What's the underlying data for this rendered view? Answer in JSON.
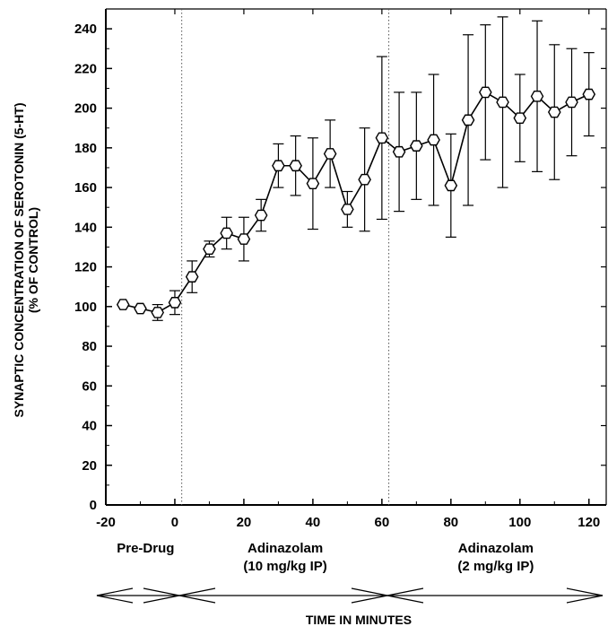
{
  "chart_data": {
    "type": "line",
    "xlabel": "TIME IN MINUTES",
    "ylabel": "SYNAPTIC CONCENTRATION OF SEROTONIN (5-HT)",
    "ylabel2": "(% OF CONTROL)",
    "xlim": [
      -20,
      125
    ],
    "ylim": [
      0,
      250
    ],
    "xticks": [
      "-20",
      "0",
      "20",
      "40",
      "60",
      "80",
      "100",
      "120"
    ],
    "yticks": [
      "0",
      "20",
      "40",
      "60",
      "80",
      "100",
      "120",
      "140",
      "160",
      "180",
      "200",
      "220",
      "240"
    ],
    "grid": false,
    "vlines": [
      2,
      62
    ],
    "phases": [
      {
        "label": "Pre-Drug",
        "sublabel": "",
        "from": -20,
        "to": 2
      },
      {
        "label": "Adinazolam",
        "sublabel": "(10 mg/kg IP)",
        "from": 2,
        "to": 62
      },
      {
        "label": "Adinazolam",
        "sublabel": "(2 mg/kg IP)",
        "from": 62,
        "to": 125
      }
    ],
    "series": [
      {
        "x": [
          -15,
          -10,
          -5,
          0,
          5,
          10,
          15,
          20,
          25,
          30,
          35,
          40,
          45,
          50,
          55,
          60,
          65,
          70,
          75,
          80,
          85,
          90,
          95,
          100,
          105,
          110,
          115,
          120
        ],
        "y": [
          101,
          99,
          97,
          102,
          115,
          129,
          137,
          134,
          146,
          171,
          171,
          162,
          177,
          149,
          164,
          185,
          178,
          181,
          184,
          161,
          194,
          208,
          203,
          195,
          206,
          198,
          203,
          207
        ],
        "err": [
          0,
          0,
          4,
          6,
          8,
          4,
          8,
          11,
          8,
          11,
          15,
          23,
          17,
          9,
          26,
          41,
          30,
          27,
          33,
          26,
          43,
          34,
          43,
          22,
          38,
          34,
          27,
          21
        ]
      }
    ]
  }
}
